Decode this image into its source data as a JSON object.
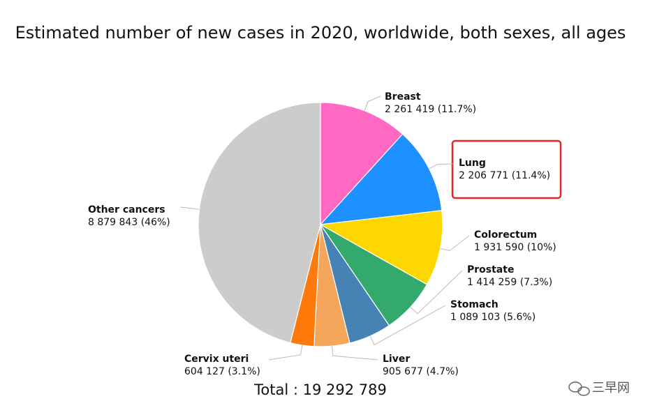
{
  "chart_data": {
    "type": "pie",
    "title": "Estimated number of new cases in 2020, worldwide, both sexes, all ages",
    "categories": [
      "Breast",
      "Lung",
      "Colorectum",
      "Prostate",
      "Stomach",
      "Liver",
      "Cervix uteri",
      "Other cancers"
    ],
    "values": [
      2261419,
      2206771,
      1931590,
      1414259,
      1089103,
      905677,
      604127,
      8879843
    ],
    "value_labels": [
      "2 261 419 (11.7%)",
      "2 206 771 (11.4%)",
      "1 931 590 (10%)",
      "1 414 259 (7.3%)",
      "1 089 103 (5.6%)",
      "905 677 (4.7%)",
      "604 127 (3.1%)",
      "8 879 843 (46%)"
    ],
    "colors": [
      "#ff69c4",
      "#1e90ff",
      "#ffd700",
      "#34a96c",
      "#4682b4",
      "#f4a75a",
      "#ff7a0a",
      "#cccccc"
    ],
    "total_label": "Total : 19 292 789",
    "watermark": "三早网"
  }
}
